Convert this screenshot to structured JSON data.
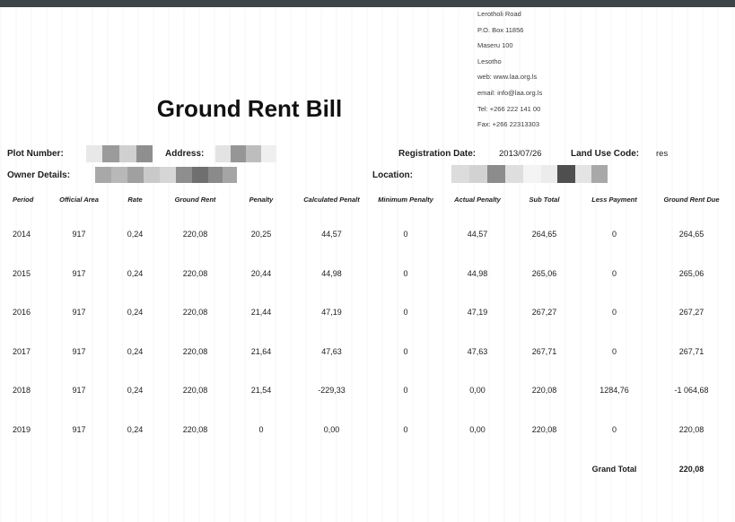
{
  "colors": {
    "topbar": "#3e4549",
    "page_background": "#ffffff",
    "text": "#1c1c1c",
    "redaction_grays": [
      "#e8e8e8",
      "#9b9b9b",
      "#d0d0d0",
      "#8f8f8f",
      "#6f6f6f",
      "#4f4f4f"
    ]
  },
  "header": {
    "contact_lines": [
      "Lerotholi Road",
      "P.O. Box 11856",
      "Maseru 100",
      "Lesotho",
      "web: www.laa.org.ls",
      "email: info@laa.org.ls",
      "Tel: +266 222 141 00",
      "Fax: +266 22313303"
    ],
    "title": "Ground Rent Bill"
  },
  "fields": {
    "plot_number_label": "Plot Number:",
    "address_label": "Address:",
    "registration_date_label": "Registration Date:",
    "registration_date_value": "2013/07/26",
    "land_use_code_label": "Land Use Code:",
    "land_use_code_value": "res",
    "owner_details_label": "Owner Details:",
    "location_label": "Location:"
  },
  "table": {
    "headers": [
      "Period",
      "Official Area",
      "Rate",
      "Ground Rent",
      "Penalty",
      "Calculated Penalt",
      "Minimum Penalty",
      "Actual Penalty",
      "Sub Total",
      "Less Payment",
      "Ground Rent Due"
    ],
    "rows": [
      [
        "2014",
        "917",
        "0,24",
        "220,08",
        "20,25",
        "44,57",
        "0",
        "44,57",
        "264,65",
        "0",
        "264,65"
      ],
      [
        "2015",
        "917",
        "0,24",
        "220,08",
        "20,44",
        "44,98",
        "0",
        "44,98",
        "265,06",
        "0",
        "265,06"
      ],
      [
        "2016",
        "917",
        "0,24",
        "220,08",
        "21,44",
        "47,19",
        "0",
        "47,19",
        "267,27",
        "0",
        "267,27"
      ],
      [
        "2017",
        "917",
        "0,24",
        "220,08",
        "21,64",
        "47,63",
        "0",
        "47,63",
        "267,71",
        "0",
        "267,71"
      ],
      [
        "2018",
        "917",
        "0,24",
        "220,08",
        "21,54",
        "-229,33",
        "0",
        "0,00",
        "220,08",
        "1284,76",
        "-1 064,68"
      ],
      [
        "2019",
        "917",
        "0,24",
        "220,08",
        "0",
        "0,00",
        "0",
        "0,00",
        "220,08",
        "0",
        "220,08"
      ]
    ],
    "grand_total_label": "Grand Total",
    "grand_total_value": "220,08"
  }
}
